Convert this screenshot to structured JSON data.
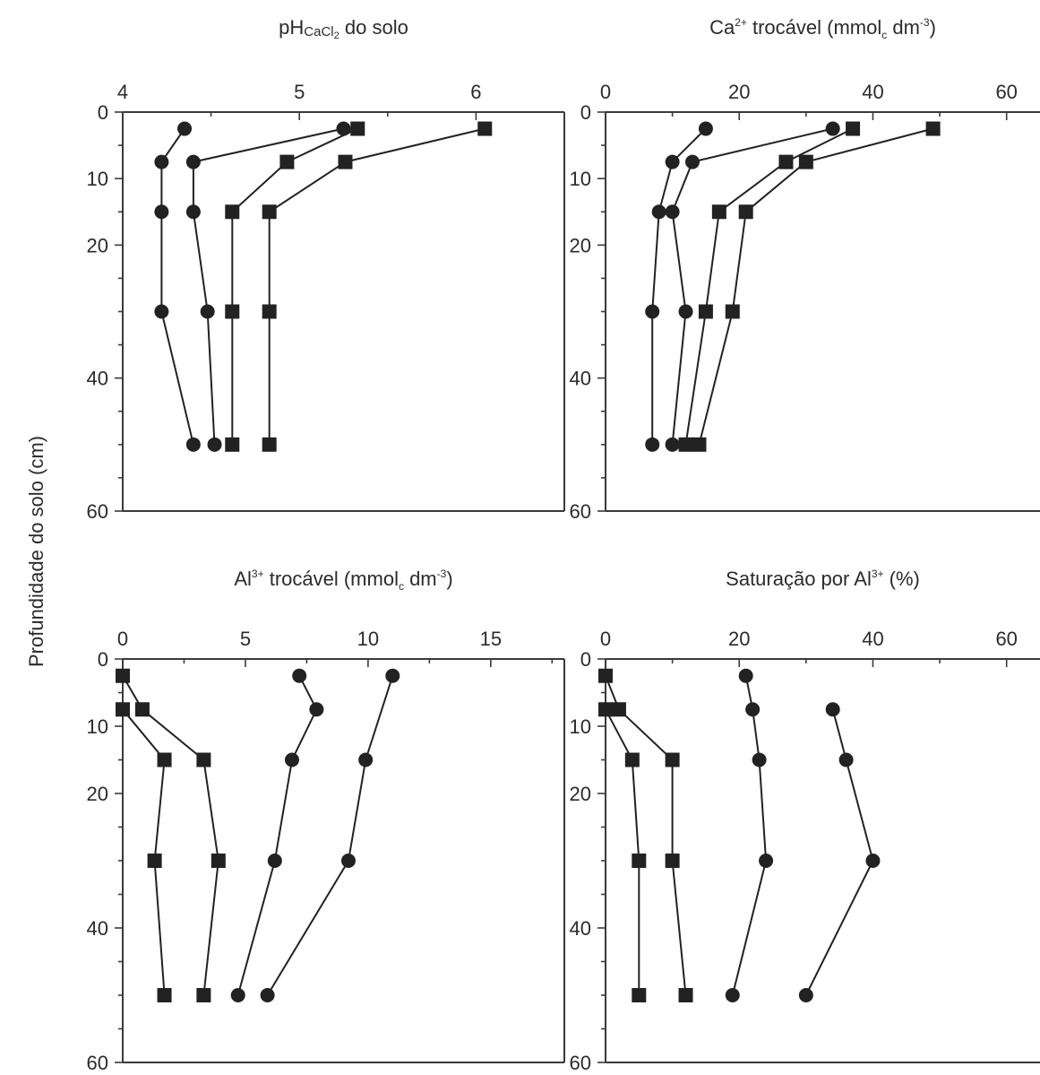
{
  "figure": {
    "ylabel": "Profundidade do solo (cm)"
  },
  "chart_data": [
    {
      "type": "line",
      "title": "pHCaCl2 do solo",
      "xlim": [
        4,
        6.5
      ],
      "ylim": [
        0,
        60
      ],
      "xticks": [
        4,
        5,
        6
      ],
      "yticks": [
        0,
        10,
        20,
        40,
        60
      ],
      "series": [
        {
          "marker": "circle",
          "points": [
            [
              4.35,
              2.5
            ],
            [
              4.22,
              7.5
            ],
            [
              4.22,
              15
            ],
            [
              4.22,
              30
            ],
            [
              4.4,
              50
            ]
          ]
        },
        {
          "marker": "circle",
          "points": [
            [
              5.25,
              2.5
            ],
            [
              4.4,
              7.5
            ],
            [
              4.4,
              15
            ],
            [
              4.48,
              30
            ],
            [
              4.52,
              50
            ]
          ]
        },
        {
          "marker": "square",
          "points": [
            [
              5.33,
              2.5
            ],
            [
              4.93,
              7.5
            ],
            [
              4.62,
              15
            ],
            [
              4.62,
              30
            ],
            [
              4.62,
              50
            ]
          ]
        },
        {
          "marker": "square",
          "points": [
            [
              6.05,
              2.5
            ],
            [
              5.26,
              7.5
            ],
            [
              4.83,
              15
            ],
            [
              4.83,
              30
            ],
            [
              4.83,
              50
            ]
          ]
        }
      ]
    },
    {
      "type": "line",
      "title": "Ca2+ trocável (mmolc dm-3)",
      "xlim": [
        0,
        65
      ],
      "ylim": [
        0,
        60
      ],
      "xticks": [
        0,
        20,
        40,
        60
      ],
      "yticks": [
        0,
        10,
        20,
        40,
        60
      ],
      "series": [
        {
          "marker": "circle",
          "points": [
            [
              15,
              2.5
            ],
            [
              10,
              7.5
            ],
            [
              8,
              15
            ],
            [
              7,
              30
            ],
            [
              7,
              50
            ]
          ]
        },
        {
          "marker": "circle",
          "points": [
            [
              34,
              2.5
            ],
            [
              13,
              7.5
            ],
            [
              10,
              15
            ],
            [
              12,
              30
            ],
            [
              10,
              50
            ]
          ]
        },
        {
          "marker": "square",
          "points": [
            [
              37,
              2.5
            ],
            [
              27,
              7.5
            ],
            [
              17,
              15
            ],
            [
              15,
              30
            ],
            [
              12,
              50
            ]
          ]
        },
        {
          "marker": "square",
          "points": [
            [
              49,
              2.5
            ],
            [
              30,
              7.5
            ],
            [
              21,
              15
            ],
            [
              19,
              30
            ],
            [
              14,
              50
            ]
          ]
        }
      ]
    },
    {
      "type": "line",
      "title": "Al3+ trocável (mmolc dm-3)",
      "xlim": [
        0,
        18
      ],
      "ylim": [
        0,
        60
      ],
      "xticks": [
        0,
        5,
        10,
        15
      ],
      "yticks": [
        0,
        10,
        20,
        40,
        60
      ],
      "series": [
        {
          "marker": "circle",
          "points": [
            [
              7.2,
              2.5
            ],
            [
              7.9,
              7.5
            ],
            [
              6.9,
              15
            ],
            [
              6.2,
              30
            ],
            [
              4.7,
              50
            ]
          ]
        },
        {
          "marker": "circle",
          "points": [
            [
              11.0,
              2.5
            ],
            [
              9.9,
              15
            ],
            [
              9.2,
              30
            ],
            [
              5.9,
              50
            ]
          ]
        },
        {
          "marker": "square",
          "points": [
            [
              0.0,
              2.5
            ],
            [
              0.8,
              7.5
            ],
            [
              3.3,
              15
            ],
            [
              3.9,
              30
            ],
            [
              3.3,
              50
            ]
          ]
        },
        {
          "marker": "square",
          "color": "#5a1a24",
          "points": [
            [
              0.0,
              7.5
            ],
            [
              1.7,
              15
            ],
            [
              1.3,
              30
            ],
            [
              1.7,
              50
            ]
          ]
        }
      ]
    },
    {
      "type": "line",
      "title": "Saturação por Al3+ (%)",
      "xlim": [
        0,
        65
      ],
      "ylim": [
        0,
        60
      ],
      "xticks": [
        0,
        20,
        40,
        60
      ],
      "yticks": [
        0,
        10,
        20,
        40,
        60
      ],
      "series": [
        {
          "marker": "circle",
          "points": [
            [
              21,
              2.5
            ],
            [
              22,
              7.5
            ],
            [
              23,
              15
            ],
            [
              24,
              30
            ],
            [
              19,
              50
            ]
          ]
        },
        {
          "marker": "circle",
          "points": [
            [
              34,
              7.5
            ],
            [
              36,
              15
            ],
            [
              40,
              30
            ],
            [
              30,
              50
            ]
          ]
        },
        {
          "marker": "square",
          "points": [
            [
              0,
              2.5
            ],
            [
              2,
              7.5
            ],
            [
              10,
              15
            ],
            [
              10,
              30
            ],
            [
              12,
              50
            ]
          ]
        },
        {
          "marker": "square",
          "color": "#5a1a24",
          "points": [
            [
              0,
              7.5
            ],
            [
              4,
              15
            ],
            [
              5,
              30
            ],
            [
              5,
              50
            ]
          ]
        }
      ]
    }
  ]
}
